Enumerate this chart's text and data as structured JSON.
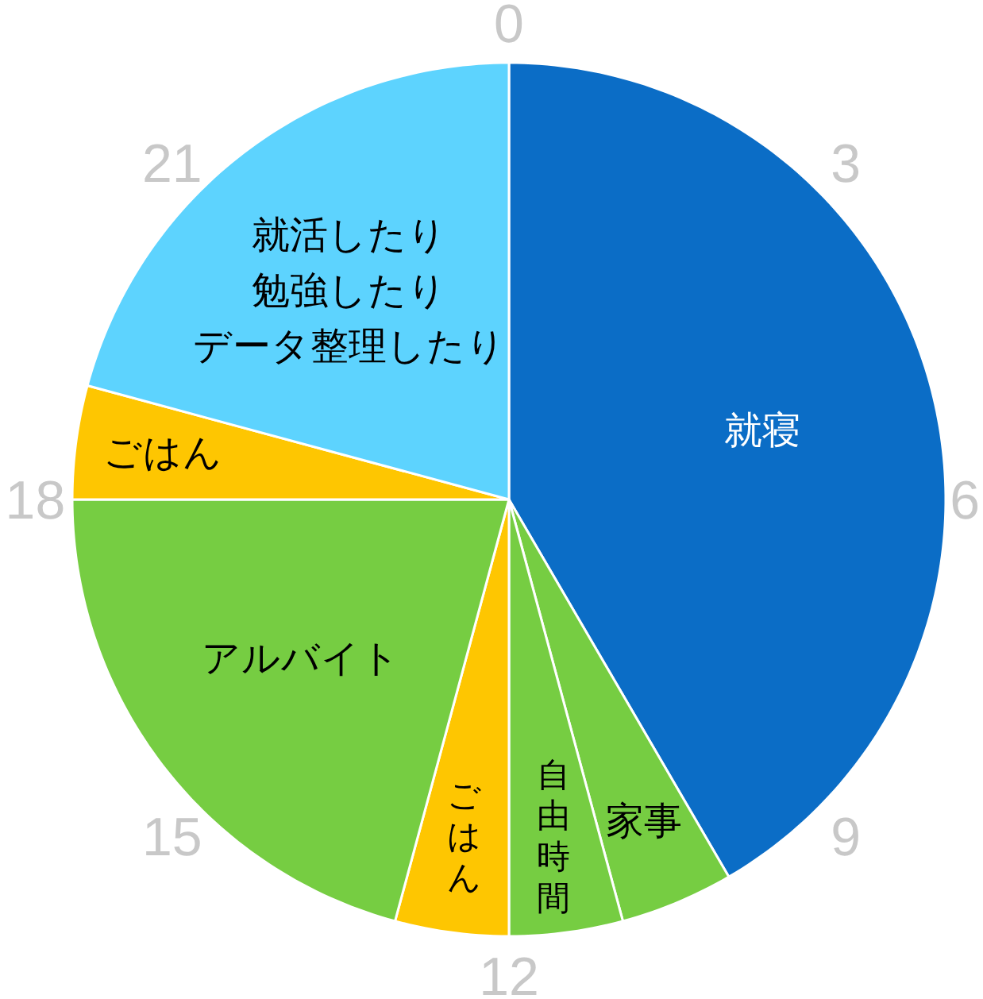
{
  "chart_data": {
    "type": "pie",
    "categories": [
      "就寝",
      "家事",
      "自由時間",
      "ごはん",
      "アルバイト",
      "ごはん",
      "就活したり勉強したりデータ整理したり"
    ],
    "values": [
      41.6,
      4.2,
      4.2,
      4.2,
      20.8,
      4.2,
      20.8
    ],
    "colors": [
      "#0b6dc6",
      "#76cd42",
      "#76cd42",
      "#fec601",
      "#76cd42",
      "#fec601",
      "#5dd3fe"
    ],
    "annotations": [
      "0",
      "3",
      "6",
      "9",
      "12",
      "15",
      "18",
      "21"
    ]
  }
}
